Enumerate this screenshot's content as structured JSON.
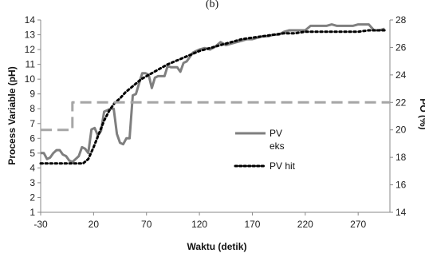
{
  "chart_data": {
    "type": "line",
    "panel_label": "(b)",
    "xlabel": "Waktu (detik)",
    "ylabel": "Process Variable (pH)",
    "y2label": "PO (%)",
    "xlim": [
      -30,
      300
    ],
    "xticks": [
      -30,
      20,
      70,
      120,
      170,
      220,
      270
    ],
    "ylim": [
      1,
      14
    ],
    "yticks": [
      1,
      2,
      3,
      4,
      5,
      6,
      7,
      8,
      9,
      10,
      11,
      12,
      13,
      14
    ],
    "y2lim": [
      14,
      28
    ],
    "y2ticks": [
      14,
      16,
      18,
      20,
      22,
      24,
      26,
      28
    ],
    "legend_position": "center-right",
    "grid": false,
    "series": [
      {
        "name": "PV eks",
        "legend_lines": [
          "PV",
          "eks"
        ],
        "axis": "left",
        "style": "solid",
        "color": "#7f7f7f",
        "x": [
          -30,
          -27,
          -24,
          -21,
          -18,
          -15,
          -12,
          -9,
          -6,
          -3,
          0,
          3,
          6,
          9,
          12,
          15,
          18,
          21,
          24,
          27,
          30,
          33,
          36,
          39,
          42,
          45,
          48,
          51,
          54,
          57,
          60,
          63,
          66,
          69,
          72,
          75,
          78,
          81,
          84,
          87,
          90,
          93,
          96,
          99,
          102,
          105,
          108,
          111,
          114,
          117,
          120,
          125,
          130,
          135,
          140,
          145,
          150,
          155,
          160,
          165,
          170,
          175,
          180,
          185,
          190,
          195,
          200,
          205,
          210,
          215,
          220,
          225,
          230,
          235,
          240,
          245,
          250,
          255,
          260,
          265,
          270,
          275,
          280,
          285,
          290,
          295
        ],
        "y": [
          5.0,
          5.0,
          4.6,
          4.7,
          5.0,
          5.2,
          5.2,
          4.9,
          4.8,
          4.5,
          4.4,
          4.6,
          4.8,
          5.4,
          5.3,
          5.0,
          6.6,
          6.7,
          6.2,
          6.5,
          7.8,
          7.9,
          8.0,
          8.0,
          6.3,
          5.7,
          5.6,
          6.0,
          6.0,
          8.9,
          9.0,
          9.7,
          10.4,
          10.4,
          10.3,
          9.4,
          10.1,
          10.2,
          10.2,
          10.2,
          10.9,
          10.8,
          10.8,
          10.8,
          10.5,
          11.1,
          11.2,
          11.5,
          11.8,
          11.9,
          12.0,
          12.1,
          12.0,
          12.2,
          12.5,
          12.3,
          12.4,
          12.5,
          12.6,
          12.7,
          12.7,
          12.8,
          12.9,
          12.9,
          13.0,
          13.0,
          13.2,
          13.3,
          13.3,
          13.3,
          13.3,
          13.6,
          13.6,
          13.6,
          13.6,
          13.7,
          13.6,
          13.6,
          13.6,
          13.6,
          13.7,
          13.7,
          13.7,
          13.3,
          13.3,
          13.4
        ]
      },
      {
        "name": "PV hit",
        "axis": "left",
        "style": "dotted",
        "color": "#000000",
        "x": [
          -30,
          -20,
          -10,
          0,
          5,
          10,
          15,
          20,
          25,
          30,
          35,
          40,
          45,
          50,
          55,
          60,
          65,
          70,
          80,
          90,
          100,
          110,
          120,
          130,
          140,
          150,
          160,
          170,
          180,
          190,
          200,
          210,
          220,
          230,
          240,
          250,
          260,
          270,
          280,
          290,
          295
        ],
        "y": [
          4.3,
          4.3,
          4.3,
          4.3,
          4.3,
          4.3,
          4.6,
          5.4,
          6.3,
          7.2,
          7.9,
          8.4,
          8.7,
          9.1,
          9.4,
          9.7,
          10.0,
          10.2,
          10.6,
          11.0,
          11.3,
          11.6,
          11.9,
          12.1,
          12.3,
          12.5,
          12.7,
          12.8,
          12.9,
          13.0,
          13.1,
          13.1,
          13.2,
          13.2,
          13.2,
          13.2,
          13.2,
          13.2,
          13.3,
          13.3,
          13.3
        ]
      },
      {
        "name": "PO",
        "axis": "right",
        "style": "dashed",
        "color": "#a6a6a6",
        "x": [
          -30,
          0,
          0,
          300
        ],
        "y": [
          20.0,
          20.0,
          22.0,
          22.0
        ]
      }
    ]
  }
}
